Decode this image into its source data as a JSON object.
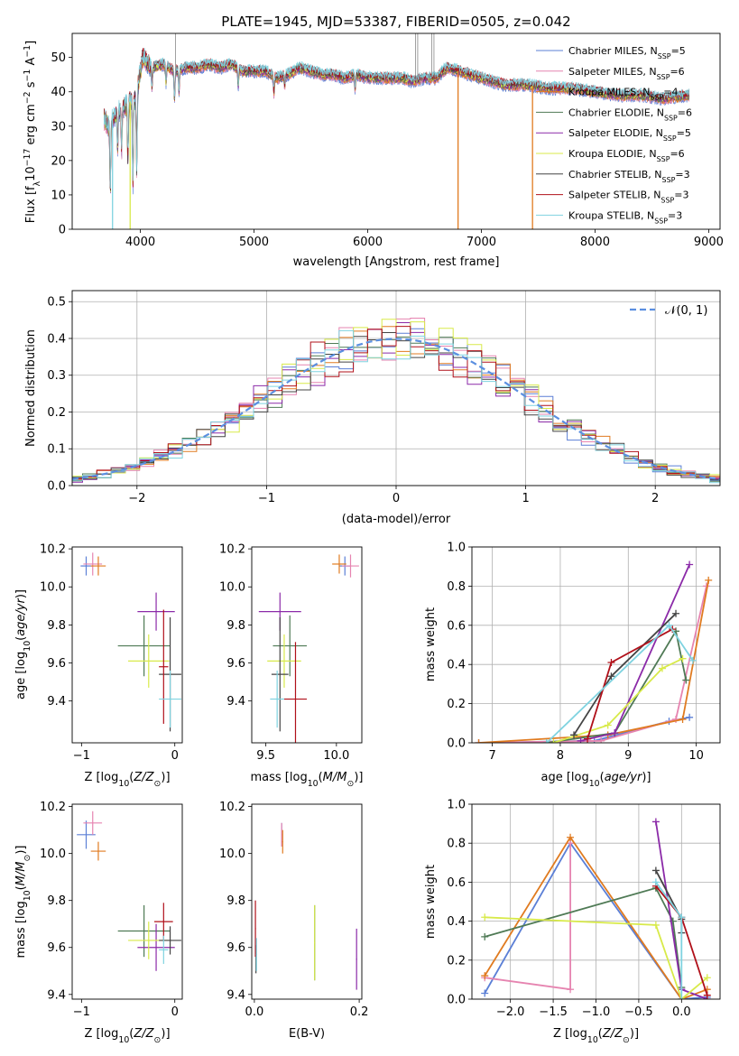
{
  "colors": {
    "chabrier_miles": "#5b7fd6",
    "salpeter_miles": "#e684b0",
    "kroupa_miles": "#e07b20",
    "chabrier_elodie": "#4f7a55",
    "salpeter_elodie": "#8b2aa8",
    "kroupa_elodie": "#d8ea4a",
    "chabrier_stelib": "#444444",
    "salpeter_stelib": "#b0101a",
    "kroupa_stelib": "#7fd3e0",
    "normal": "#5b8fe0",
    "grid": "#b0b0b0"
  },
  "chart_data": [
    {
      "id": "spectrum",
      "type": "line",
      "title": "PLATE=1945, MJD=53387, FIBERID=0505, z=0.042",
      "xlabel": "wavelength [Angstrom, rest frame]",
      "ylabel": "Flux [fλ10⁻¹⁷ erg cm⁻² s⁻¹ A⁻¹]",
      "xlim": [
        3400,
        9100
      ],
      "ylim": [
        0,
        57
      ],
      "xticks": [
        4000,
        5000,
        6000,
        7000,
        8000,
        9000
      ],
      "yticks": [
        0,
        10,
        20,
        30,
        40,
        50
      ],
      "grid": false,
      "legend_position": "top-right",
      "series": [
        {
          "name": "Chabrier MILES, N",
          "sub": "SSP",
          "suffix": "=5",
          "color_key": "chabrier_miles"
        },
        {
          "name": "Salpeter MILES, N",
          "sub": "SSP",
          "suffix": "=6",
          "color_key": "salpeter_miles"
        },
        {
          "name": "Kroupa MILES, N",
          "sub": "SSP",
          "suffix": "=4",
          "color_key": "kroupa_miles"
        },
        {
          "name": "Chabrier ELODIE, N",
          "sub": "SSP",
          "suffix": "=6",
          "color_key": "chabrier_elodie"
        },
        {
          "name": "Salpeter ELODIE, N",
          "sub": "SSP",
          "suffix": "=5",
          "color_key": "salpeter_elodie"
        },
        {
          "name": "Kroupa ELODIE, N",
          "sub": "SSP",
          "suffix": "=6",
          "color_key": "kroupa_elodie"
        },
        {
          "name": "Chabrier STELIB, N",
          "sub": "SSP",
          "suffix": "=3",
          "color_key": "chabrier_stelib"
        },
        {
          "name": "Salpeter STELIB, N",
          "sub": "SSP",
          "suffix": "=3",
          "color_key": "salpeter_stelib"
        },
        {
          "name": "Kroupa STELIB, N",
          "sub": "SSP",
          "suffix": "=3",
          "color_key": "kroupa_stelib"
        }
      ],
      "continuum": [
        [
          3680,
          32
        ],
        [
          3720,
          30
        ],
        [
          3800,
          34
        ],
        [
          3900,
          37
        ],
        [
          3960,
          38
        ],
        [
          4020,
          50
        ],
        [
          4100,
          47
        ],
        [
          4200,
          48
        ],
        [
          4300,
          46
        ],
        [
          4400,
          47
        ],
        [
          4500,
          47
        ],
        [
          4600,
          48
        ],
        [
          4700,
          47
        ],
        [
          4800,
          48
        ],
        [
          4900,
          46
        ],
        [
          5000,
          46
        ],
        [
          5100,
          46
        ],
        [
          5200,
          44
        ],
        [
          5300,
          45
        ],
        [
          5400,
          47
        ],
        [
          5500,
          46
        ],
        [
          5600,
          45
        ],
        [
          5700,
          45
        ],
        [
          5800,
          44
        ],
        [
          5900,
          45
        ],
        [
          6000,
          44
        ],
        [
          6100,
          44
        ],
        [
          6200,
          44
        ],
        [
          6300,
          44
        ],
        [
          6400,
          43
        ],
        [
          6500,
          44
        ],
        [
          6600,
          44
        ],
        [
          6700,
          47
        ],
        [
          6800,
          46
        ],
        [
          6900,
          45
        ],
        [
          7000,
          44
        ],
        [
          7200,
          42
        ],
        [
          7400,
          42
        ],
        [
          7600,
          41
        ],
        [
          7800,
          41
        ],
        [
          8000,
          40
        ],
        [
          8200,
          39
        ],
        [
          8400,
          39
        ],
        [
          8600,
          38
        ],
        [
          8830,
          39
        ]
      ],
      "absorption_lines": [
        [
          3735,
          20
        ],
        [
          3800,
          10
        ],
        [
          3835,
          12
        ],
        [
          3890,
          16
        ],
        [
          3934,
          25
        ],
        [
          3968,
          22
        ],
        [
          4102,
          6
        ],
        [
          4226,
          5
        ],
        [
          4300,
          8
        ],
        [
          4340,
          6
        ],
        [
          4861,
          5
        ],
        [
          5175,
          5
        ],
        [
          5270,
          3
        ],
        [
          5890,
          4
        ]
      ],
      "spikes": [
        [
          4310,
          57
        ],
        [
          6420,
          57
        ],
        [
          6440,
          57
        ],
        [
          6563,
          57
        ],
        [
          6583,
          57
        ]
      ],
      "dropouts": [
        {
          "x": 3755,
          "color_key": "kroupa_stelib"
        },
        {
          "x": 3910,
          "color_key": "kroupa_elodie"
        },
        {
          "x": 6795,
          "color_key": "kroupa_miles"
        },
        {
          "x": 7450,
          "color_key": "kroupa_miles"
        }
      ]
    },
    {
      "id": "residuals",
      "type": "step",
      "xlabel": "(data-model)/error",
      "ylabel": "Normed distribution",
      "xlim": [
        -2.5,
        2.5
      ],
      "ylim": [
        0,
        0.53
      ],
      "xticks": [
        -2,
        -1,
        0,
        1,
        2
      ],
      "xtick_labels": [
        "−2",
        "−1",
        "0",
        "1",
        "2"
      ],
      "yticks": [
        0.0,
        0.1,
        0.2,
        0.3,
        0.4,
        0.5
      ],
      "ytick_labels": [
        "0.0",
        "0.1",
        "0.2",
        "0.3",
        "0.4",
        "0.5"
      ],
      "grid": true,
      "legend_position": "top-right",
      "legend_label": "𝒩(0, 1)",
      "bin_width": 0.11,
      "bin_start": -2.53
    },
    {
      "id": "age_vs_z",
      "type": "errorbar",
      "xlabel": "Z [log₁₀(Z/Z⊙)]",
      "ylabel": "age  [log₁₀(age/yr)]",
      "xlim": [
        -1.1,
        0.08
      ],
      "ylim": [
        9.18,
        10.21
      ],
      "xticks": [
        -1,
        0
      ],
      "xtick_labels": [
        "−1",
        "0"
      ],
      "yticks": [
        9.4,
        9.6,
        9.8,
        10.0,
        10.2
      ],
      "ytick_labels": [
        "9.4",
        "9.6",
        "9.8",
        "10.0",
        "10.2"
      ],
      "points": [
        {
          "c": "chabrier_miles",
          "x": -0.95,
          "y": 10.11,
          "ex": 0.06,
          "ey": 0.05
        },
        {
          "c": "salpeter_miles",
          "x": -0.88,
          "y": 10.12,
          "ex": 0.1,
          "ey": 0.06
        },
        {
          "c": "kroupa_miles",
          "x": -0.82,
          "y": 10.11,
          "ex": 0.08,
          "ey": 0.05
        },
        {
          "c": "chabrier_elodie",
          "x": -0.33,
          "y": 9.69,
          "ex": 0.28,
          "ey": 0.16
        },
        {
          "c": "salpeter_elodie",
          "x": -0.2,
          "y": 9.87,
          "ex": 0.2,
          "ey": 0.1
        },
        {
          "c": "kroupa_elodie",
          "x": -0.28,
          "y": 9.61,
          "ex": 0.22,
          "ey": 0.14
        },
        {
          "c": "chabrier_stelib",
          "x": -0.05,
          "y": 9.54,
          "ex": 0.12,
          "ey": 0.3
        },
        {
          "c": "salpeter_stelib",
          "x": -0.12,
          "y": 9.58,
          "ex": 0.05,
          "ey": 0.3
        },
        {
          "c": "kroupa_stelib",
          "x": -0.05,
          "y": 9.41,
          "ex": 0.12,
          "ey": 0.15
        }
      ]
    },
    {
      "id": "age_vs_mass",
      "type": "errorbar",
      "xlabel": "mass [log₁₀(M/M⊙)]",
      "ylabel": "",
      "xlim": [
        9.4,
        10.18
      ],
      "ylim": [
        9.18,
        10.21
      ],
      "xticks": [
        9.5,
        10.0
      ],
      "xtick_labels": [
        "9.5",
        "10.0"
      ],
      "yticks": [
        9.4,
        9.6,
        9.8,
        10.0,
        10.2
      ],
      "ytick_labels": [
        "9.4",
        "9.6",
        "9.8",
        "10.0",
        "10.2"
      ],
      "points": [
        {
          "c": "chabrier_miles",
          "x": 10.06,
          "y": 10.11,
          "ex": 0.04,
          "ey": 0.05
        },
        {
          "c": "salpeter_miles",
          "x": 10.1,
          "y": 10.11,
          "ex": 0.06,
          "ey": 0.06
        },
        {
          "c": "kroupa_miles",
          "x": 10.02,
          "y": 10.12,
          "ex": 0.05,
          "ey": 0.05
        },
        {
          "c": "chabrier_elodie",
          "x": 9.67,
          "y": 9.69,
          "ex": 0.12,
          "ey": 0.16
        },
        {
          "c": "salpeter_elodie",
          "x": 9.6,
          "y": 9.87,
          "ex": 0.15,
          "ey": 0.1
        },
        {
          "c": "kroupa_elodie",
          "x": 9.63,
          "y": 9.61,
          "ex": 0.12,
          "ey": 0.14
        },
        {
          "c": "chabrier_stelib",
          "x": 9.6,
          "y": 9.54,
          "ex": 0.06,
          "ey": 0.3
        },
        {
          "c": "salpeter_stelib",
          "x": 9.71,
          "y": 9.41,
          "ex": 0.08,
          "ey": 0.3
        },
        {
          "c": "kroupa_stelib",
          "x": 9.58,
          "y": 9.41,
          "ex": 0.05,
          "ey": 0.15
        }
      ]
    },
    {
      "id": "weight_vs_age",
      "type": "line",
      "xlabel": "age  [log₁₀(age/yr)]",
      "ylabel": "mass weight",
      "xlim": [
        6.7,
        10.35
      ],
      "ylim": [
        0,
        1.0
      ],
      "xticks": [
        7,
        8,
        9,
        10
      ],
      "xtick_labels": [
        "7",
        "8",
        "9",
        "10"
      ],
      "yticks": [
        0.0,
        0.2,
        0.4,
        0.6,
        0.8,
        1.0
      ],
      "ytick_labels": [
        "0.0",
        "0.2",
        "0.4",
        "0.6",
        "0.8",
        "1.0"
      ],
      "grid": true,
      "series": [
        {
          "c": "chabrier_miles",
          "x": [
            6.8,
            8.5,
            9.6,
            9.9
          ],
          "y": [
            0.0,
            0.01,
            0.11,
            0.13
          ]
        },
        {
          "c": "salpeter_miles",
          "x": [
            6.8,
            8.6,
            9.7,
            10.15
          ],
          "y": [
            0.0,
            0.01,
            0.12,
            0.8
          ]
        },
        {
          "c": "kroupa_miles",
          "x": [
            6.8,
            8.7,
            9.8,
            10.18
          ],
          "y": [
            0.0,
            0.04,
            0.12,
            0.83
          ]
        },
        {
          "c": "chabrier_elodie",
          "x": [
            7.8,
            8.8,
            9.7,
            9.85
          ],
          "y": [
            0.0,
            0.05,
            0.57,
            0.32
          ]
        },
        {
          "c": "salpeter_elodie",
          "x": [
            8.3,
            8.8,
            9.9
          ],
          "y": [
            0.01,
            0.05,
            0.91
          ]
        },
        {
          "c": "kroupa_elodie",
          "x": [
            7.9,
            8.7,
            9.5,
            9.8
          ],
          "y": [
            0.0,
            0.09,
            0.38,
            0.43
          ]
        },
        {
          "c": "chabrier_stelib",
          "x": [
            8.2,
            8.75,
            9.7
          ],
          "y": [
            0.04,
            0.34,
            0.66
          ]
        },
        {
          "c": "salpeter_stelib",
          "x": [
            8.4,
            8.75,
            9.65
          ],
          "y": [
            0.02,
            0.41,
            0.58
          ]
        },
        {
          "c": "kroupa_stelib",
          "x": [
            7.8,
            9.6,
            9.95
          ],
          "y": [
            0.0,
            0.6,
            0.42
          ]
        }
      ]
    },
    {
      "id": "mass_vs_z",
      "type": "errorbar",
      "xlabel": "Z [log₁₀(Z/Z⊙)]",
      "ylabel": "mass [log₁₀(M/M⊙)]",
      "xlim": [
        -1.1,
        0.08
      ],
      "ylim": [
        9.38,
        10.21
      ],
      "xticks": [
        -1,
        0
      ],
      "xtick_labels": [
        "−1",
        "0"
      ],
      "yticks": [
        9.4,
        9.6,
        9.8,
        10.0,
        10.2
      ],
      "ytick_labels": [
        "9.4",
        "9.6",
        "9.8",
        "10.0",
        "10.2"
      ],
      "points": [
        {
          "c": "chabrier_miles",
          "x": -0.95,
          "y": 10.08,
          "ex": 0.1,
          "ey": 0.06
        },
        {
          "c": "salpeter_miles",
          "x": -0.88,
          "y": 10.13,
          "ex": 0.1,
          "ey": 0.05
        },
        {
          "c": "kroupa_miles",
          "x": -0.82,
          "y": 10.01,
          "ex": 0.08,
          "ey": 0.04
        },
        {
          "c": "chabrier_elodie",
          "x": -0.33,
          "y": 9.67,
          "ex": 0.28,
          "ey": 0.11
        },
        {
          "c": "salpeter_elodie",
          "x": -0.2,
          "y": 9.6,
          "ex": 0.2,
          "ey": 0.1
        },
        {
          "c": "kroupa_elodie",
          "x": -0.28,
          "y": 9.63,
          "ex": 0.22,
          "ey": 0.08
        },
        {
          "c": "chabrier_stelib",
          "x": -0.05,
          "y": 9.63,
          "ex": 0.12,
          "ey": 0.06
        },
        {
          "c": "salpeter_stelib",
          "x": -0.12,
          "y": 9.71,
          "ex": 0.1,
          "ey": 0.08
        },
        {
          "c": "kroupa_stelib",
          "x": -0.12,
          "y": 9.59,
          "ex": 0.05,
          "ey": 0.06
        }
      ]
    },
    {
      "id": "mass_vs_ebv",
      "type": "errorbar",
      "xlabel": "E(B-V)",
      "ylabel": "",
      "xlim": [
        -0.005,
        0.205
      ],
      "ylim": [
        9.38,
        10.21
      ],
      "xticks": [
        0.0,
        0.2
      ],
      "xtick_labels": [
        "0.0",
        "0.2"
      ],
      "yticks": [
        9.4,
        9.6,
        9.8,
        10.0,
        10.2
      ],
      "ytick_labels": [
        "9.4",
        "9.6",
        "9.8",
        "10.0",
        "10.2"
      ],
      "points": [
        {
          "c": "chabrier_miles",
          "x": 0.052,
          "y": 10.08,
          "ex": 0.001,
          "ey": 0.05
        },
        {
          "c": "salpeter_miles",
          "x": 0.052,
          "y": 10.08,
          "ex": 0.001,
          "ey": 0.05
        },
        {
          "c": "kroupa_miles",
          "x": 0.054,
          "y": 10.05,
          "ex": 0.001,
          "ey": 0.05
        },
        {
          "c": "chabrier_elodie",
          "x": 0.115,
          "y": 9.62,
          "ex": 0.001,
          "ey": 0.16
        },
        {
          "c": "salpeter_elodie",
          "x": 0.195,
          "y": 9.55,
          "ex": 0.001,
          "ey": 0.13
        },
        {
          "c": "kroupa_elodie",
          "x": 0.115,
          "y": 9.62,
          "ex": 0.001,
          "ey": 0.16
        },
        {
          "c": "chabrier_stelib",
          "x": 0.003,
          "y": 9.55,
          "ex": 0.001,
          "ey": 0.06
        },
        {
          "c": "salpeter_stelib",
          "x": 0.002,
          "y": 9.68,
          "ex": 0.001,
          "ey": 0.12
        },
        {
          "c": "kroupa_stelib",
          "x": 0.004,
          "y": 9.57,
          "ex": 0.001,
          "ey": 0.07
        }
      ]
    },
    {
      "id": "weight_vs_z",
      "type": "line",
      "xlabel": "Z [log₁₀(Z/Z⊙)]",
      "ylabel": "mass weight",
      "xlim": [
        -2.45,
        0.45
      ],
      "ylim": [
        0,
        1.0
      ],
      "xticks": [
        -2.0,
        -1.5,
        -1.0,
        -0.5,
        0.0
      ],
      "xtick_labels": [
        "−2.0",
        "−1.5",
        "−1.0",
        "−0.5",
        "0.0"
      ],
      "yticks": [
        0.0,
        0.2,
        0.4,
        0.6,
        0.8,
        1.0
      ],
      "ytick_labels": [
        "0.0",
        "0.2",
        "0.4",
        "0.6",
        "0.8",
        "1.0"
      ],
      "grid": true,
      "series": [
        {
          "c": "chabrier_miles",
          "x": [
            -2.3,
            -1.3,
            0.0,
            0.3
          ],
          "y": [
            0.03,
            0.8,
            0.0,
            0.01
          ]
        },
        {
          "c": "salpeter_miles",
          "x": [
            -2.3,
            -1.3,
            -1.3
          ],
          "y": [
            0.11,
            0.05,
            0.8
          ]
        },
        {
          "c": "kroupa_miles",
          "x": [
            -2.3,
            -1.3,
            0.0,
            0.3
          ],
          "y": [
            0.12,
            0.83,
            0.0,
            0.05
          ]
        },
        {
          "c": "chabrier_elodie",
          "x": [
            -2.3,
            -0.3,
            -0.1,
            0.0
          ],
          "y": [
            0.32,
            0.57,
            0.4,
            0.06
          ]
        },
        {
          "c": "salpeter_elodie",
          "x": [
            -0.3,
            0.0,
            0.3
          ],
          "y": [
            0.91,
            0.05,
            0.0
          ]
        },
        {
          "c": "kroupa_elodie",
          "x": [
            -2.3,
            -0.3,
            0.0,
            0.3
          ],
          "y": [
            0.42,
            0.38,
            0.0,
            0.11
          ]
        },
        {
          "c": "chabrier_stelib",
          "x": [
            -0.3,
            0.0,
            0.0
          ],
          "y": [
            0.66,
            0.41,
            0.34
          ]
        },
        {
          "c": "salpeter_stelib",
          "x": [
            -0.3,
            0.0,
            0.3
          ],
          "y": [
            0.58,
            0.42,
            0.02
          ]
        },
        {
          "c": "kroupa_stelib",
          "x": [
            -0.3,
            0.0,
            0.0
          ],
          "y": [
            0.6,
            0.42,
            0.0
          ]
        }
      ]
    }
  ]
}
